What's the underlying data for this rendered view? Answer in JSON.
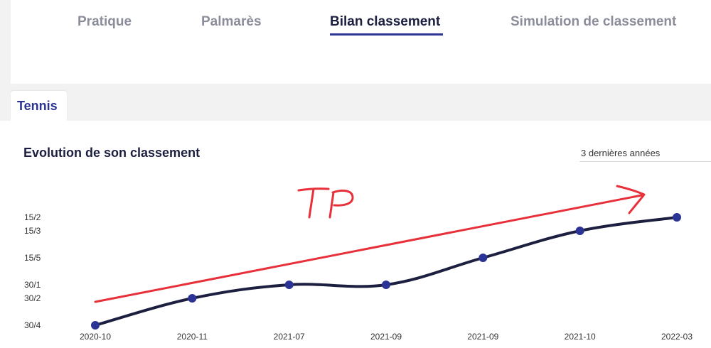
{
  "nav": {
    "items": [
      {
        "label": "Pratique"
      },
      {
        "label": "Palmarès"
      },
      {
        "label": "Bilan classement",
        "active": true
      },
      {
        "label": "Simulation de classement"
      }
    ]
  },
  "tabs": {
    "tennis": "Tennis"
  },
  "section": {
    "title": "Evolution de son classement",
    "period": "3 dernières années"
  },
  "annotation": {
    "text": "TP",
    "color": "#e8303a"
  },
  "colors": {
    "line": "#1c1f3f",
    "point": "#2b3494",
    "accent": "#2d3494"
  },
  "chart_data": {
    "type": "line",
    "title": "Evolution de son classement",
    "categories": [
      "2020-10",
      "2020-11",
      "2021-07",
      "2021-09",
      "2021-09",
      "2021-10",
      "2022-03"
    ],
    "y_scale": [
      "30/4",
      "30/3",
      "30/2",
      "30/1",
      "30",
      "15/5",
      "15/4",
      "15/3",
      "15/2"
    ],
    "y_tick_labels": [
      "30/4",
      "30/2",
      "30/1",
      "15/5",
      "15/3",
      "15/2"
    ],
    "series": [
      {
        "values": [
          "30/4",
          "30/2",
          "30/1",
          "30/1",
          "15/5",
          "15/3",
          "15/2"
        ]
      }
    ],
    "grid": false
  }
}
